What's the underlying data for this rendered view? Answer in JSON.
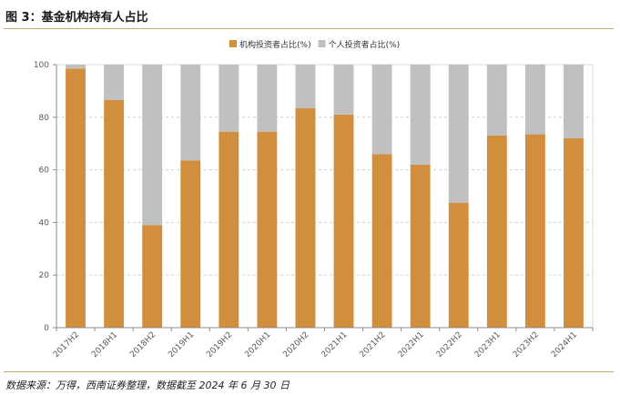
{
  "figure": {
    "title": "图 3：基金机构持有人占比",
    "source": "数据来源：万得，西南证券整理，数据截至 2024 年 6 月 30 日"
  },
  "colors": {
    "institutional": "#d18e3d",
    "individual": "#c0c0c0",
    "rule": "#c9a86e"
  },
  "chart_data": {
    "type": "bar",
    "stacked": true,
    "categories": [
      "2017H2",
      "2018H1",
      "2018H2",
      "2019H1",
      "2019H2",
      "2020H1",
      "2020H2",
      "2021H1",
      "2021H2",
      "2022H1",
      "2022H2",
      "2023H1",
      "2023H2",
      "2024H1"
    ],
    "series": [
      {
        "name": "机构投资者占比(%)",
        "values": [
          98.5,
          86.5,
          39,
          63.5,
          74.5,
          74.5,
          83.5,
          81,
          66,
          62,
          47.5,
          73,
          73.5,
          72
        ]
      },
      {
        "name": "个人投资者占比(%)",
        "values": [
          1.5,
          13.5,
          61,
          36.5,
          25.5,
          25.5,
          16.5,
          19,
          34,
          38,
          52.5,
          27,
          26.5,
          28
        ]
      }
    ],
    "yticks": [
      0,
      20,
      40,
      60,
      80,
      100
    ],
    "ylim": [
      0,
      100
    ],
    "grid": true,
    "legend_position": "top-center"
  }
}
